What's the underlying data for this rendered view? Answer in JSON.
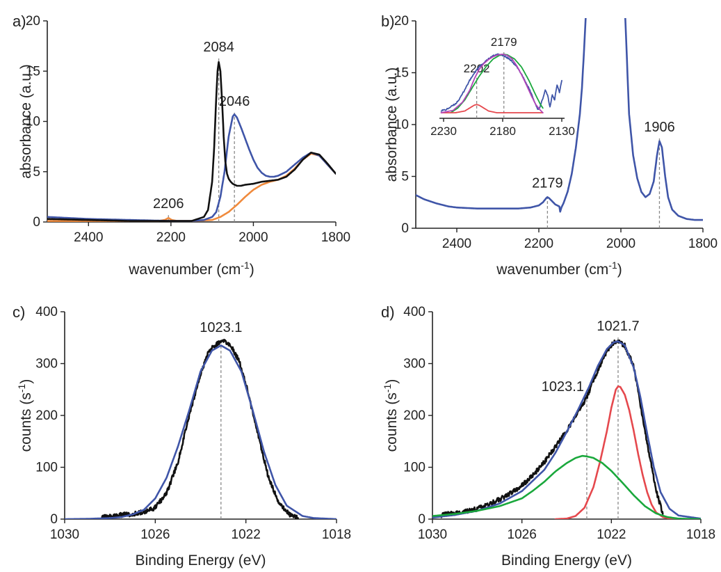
{
  "colors": {
    "black": "#111111",
    "blue": "#3f55a8",
    "orange": "#f08a3c",
    "red": "#e5484d",
    "green": "#1aa83c",
    "magenta": "#b245b8"
  },
  "chart_data": [
    {
      "panel": "a)",
      "type": "line",
      "xlabel": "wavenumber (cm",
      "xlabel_sup": "-1",
      "xlabel_end": ")",
      "ylabel": "absorbance (a.u.)",
      "xlim": [
        2500,
        1800
      ],
      "ylim": [
        0,
        20
      ],
      "xticks": [
        2400,
        2200,
        2000,
        1800
      ],
      "yticks": [
        0,
        5,
        10,
        15,
        20
      ],
      "peak_labels": [
        {
          "text": "2084",
          "x": 2084,
          "y": 16
        },
        {
          "text": "2046",
          "x": 2046,
          "y": 10.6
        },
        {
          "text": "2206",
          "x": 2206,
          "y": 0.4
        }
      ],
      "series": [
        {
          "color": "black",
          "x": [
            2500,
            2400,
            2300,
            2250,
            2200,
            2150,
            2120,
            2110,
            2100,
            2095,
            2090,
            2087,
            2084,
            2080,
            2076,
            2072,
            2068,
            2064,
            2060,
            2055,
            2050,
            2040,
            2030,
            2020,
            2000,
            1980,
            1960,
            1940,
            1920,
            1900,
            1880,
            1860,
            1840,
            1820,
            1800
          ],
          "y": [
            0.3,
            0.2,
            0.1,
            0.1,
            0.1,
            0.1,
            0.5,
            1.2,
            4.0,
            7.5,
            12.5,
            15.0,
            15.9,
            15.0,
            12.0,
            8.5,
            6.0,
            4.8,
            4.3,
            4.0,
            3.8,
            3.6,
            3.6,
            3.7,
            3.8,
            4.0,
            4.1,
            4.2,
            4.5,
            5.2,
            6.2,
            6.9,
            6.7,
            5.8,
            4.8
          ]
        },
        {
          "color": "blue",
          "x": [
            2500,
            2400,
            2300,
            2200,
            2150,
            2120,
            2100,
            2090,
            2080,
            2070,
            2060,
            2050,
            2046,
            2040,
            2030,
            2020,
            2010,
            2000,
            1990,
            1980,
            1970,
            1960,
            1950,
            1940,
            1920,
            1900,
            1880,
            1860,
            1840,
            1820,
            1800
          ],
          "y": [
            0.5,
            0.3,
            0.2,
            0.1,
            0.1,
            0.2,
            0.5,
            1.0,
            2.5,
            5.0,
            8.5,
            10.5,
            10.7,
            10.4,
            9.4,
            8.3,
            7.2,
            6.2,
            5.4,
            4.9,
            4.6,
            4.5,
            4.5,
            4.6,
            5.0,
            5.7,
            6.4,
            6.9,
            6.6,
            5.7,
            4.8
          ]
        },
        {
          "color": "orange",
          "x": [
            2500,
            2400,
            2300,
            2230,
            2215,
            2206,
            2198,
            2185,
            2150,
            2100,
            2080,
            2060,
            2040,
            2020,
            2000,
            1980,
            1960,
            1940,
            1920,
            1900,
            1880,
            1860,
            1840,
            1820,
            1800
          ],
          "y": [
            0.1,
            0.1,
            0.1,
            0.1,
            0.2,
            0.4,
            0.2,
            0.1,
            0.1,
            0.2,
            0.5,
            1.0,
            1.7,
            2.5,
            3.2,
            3.7,
            4.0,
            4.2,
            4.6,
            5.3,
            6.2,
            6.8,
            6.6,
            5.7,
            4.8
          ]
        }
      ]
    },
    {
      "panel": "b)",
      "type": "line",
      "xlabel": "wavenumber (cm",
      "xlabel_sup": "-1",
      "xlabel_end": ")",
      "ylabel": "absorbance (a.u.)",
      "xlim": [
        2500,
        1800
      ],
      "ylim": [
        0,
        20
      ],
      "xticks": [
        2400,
        2200,
        2000,
        1800
      ],
      "yticks": [
        0,
        5,
        10,
        15,
        20
      ],
      "peak_labels": [
        {
          "text": "2179",
          "x": 2179,
          "y": 3.0
        },
        {
          "text": "1906",
          "x": 1906,
          "y": 8.4
        }
      ],
      "series": [
        {
          "color": "blue",
          "x": [
            2500,
            2480,
            2450,
            2420,
            2400,
            2350,
            2300,
            2250,
            2220,
            2200,
            2190,
            2182,
            2179,
            2175,
            2170,
            2160,
            2150,
            2148,
            2145,
            2140,
            2130,
            2120,
            2110,
            2100,
            2095,
            2090,
            2086,
            2084,
            1990,
            1988,
            1984,
            1980,
            1970,
            1960,
            1950,
            1940,
            1930,
            1920,
            1912,
            1906,
            1900,
            1892,
            1885,
            1875,
            1860,
            1840,
            1820,
            1800
          ],
          "y": [
            3.2,
            2.8,
            2.4,
            2.1,
            2.0,
            1.9,
            1.9,
            1.9,
            2.0,
            2.2,
            2.5,
            2.9,
            3.0,
            2.9,
            2.7,
            2.3,
            2.1,
            1.6,
            2.0,
            2.4,
            3.5,
            5.2,
            7.7,
            11.0,
            13.5,
            17.0,
            20.2,
            21.0,
            21.0,
            19.0,
            15.0,
            11.0,
            7.0,
            4.8,
            3.5,
            3.0,
            3.3,
            4.5,
            7.0,
            8.4,
            7.8,
            5.0,
            3.0,
            1.8,
            1.2,
            0.9,
            0.8,
            0.8
          ]
        }
      ],
      "inset": {
        "xlim": [
          2230,
          2130
        ],
        "xticks": [
          2230,
          2180,
          2130
        ],
        "peak_labels": [
          {
            "text": "2202",
            "x": 2202
          },
          {
            "text": "2179",
            "x": 2179
          }
        ],
        "series": [
          {
            "color": "blue",
            "x": [
              2232,
              2228,
              2224,
              2220,
              2216,
              2212,
              2208,
              2204,
              2200,
              2196,
              2192,
              2188,
              2184,
              2180,
              2176,
              2172,
              2168,
              2164,
              2160,
              2156,
              2153,
              2150,
              2148,
              2146,
              2144,
              2142,
              2140,
              2138,
              2136,
              2134,
              2132,
              2130
            ],
            "y": [
              0.04,
              0.05,
              0.1,
              0.15,
              0.25,
              0.4,
              0.55,
              0.68,
              0.78,
              0.85,
              0.92,
              0.97,
              1.0,
              0.98,
              0.94,
              0.88,
              0.78,
              0.66,
              0.5,
              0.34,
              0.18,
              0.05,
              0.12,
              0.25,
              0.4,
              0.3,
              0.1,
              0.3,
              0.22,
              0.48,
              0.35,
              0.55
            ]
          },
          {
            "color": "green",
            "x": [
              2224,
              2218,
              2212,
              2206,
              2200,
              2194,
              2188,
              2182,
              2179,
              2176,
              2170,
              2164,
              2158,
              2152,
              2148,
              2146
            ],
            "y": [
              0.0,
              0.08,
              0.22,
              0.42,
              0.62,
              0.79,
              0.92,
              0.99,
              1.0,
              0.99,
              0.92,
              0.78,
              0.56,
              0.3,
              0.14,
              0.08
            ]
          },
          {
            "color": "red",
            "x": [
              2232,
              2220,
              2212,
              2208,
              2204,
              2202,
              2200,
              2196,
              2192,
              2185,
              2175,
              2160,
              2146
            ],
            "y": [
              0.0,
              0.0,
              0.03,
              0.08,
              0.13,
              0.14,
              0.13,
              0.08,
              0.03,
              0.0,
              0.0,
              0.0,
              0.0
            ]
          },
          {
            "color": "magenta",
            "x": [
              2232,
              2222,
              2214,
              2208,
              2204,
              2200,
              2196,
              2192,
              2188,
              2184,
              2180,
              2176,
              2172,
              2168,
              2164,
              2160,
              2156,
              2152,
              2148,
              2146
            ],
            "y": [
              0.0,
              0.04,
              0.18,
              0.38,
              0.58,
              0.74,
              0.84,
              0.91,
              0.96,
              0.99,
              1.0,
              0.98,
              0.92,
              0.8,
              0.65,
              0.48,
              0.3,
              0.14,
              0.04,
              0.0
            ]
          }
        ]
      }
    },
    {
      "panel": "c)",
      "type": "line",
      "xlabel": "Binding Energy (eV)",
      "ylabel": "counts (s",
      "ylabel_sup": "-1",
      "ylabel_end": ")",
      "xlim": [
        1030,
        1018
      ],
      "ylim": [
        0,
        400
      ],
      "xticks": [
        1030,
        1026,
        1022,
        1018
      ],
      "yticks": [
        0,
        100,
        200,
        300,
        400
      ],
      "peak_labels": [
        {
          "text": "1023.1",
          "x": 1023.1,
          "y": 342
        }
      ],
      "series": [
        {
          "color": "black",
          "noisy": true,
          "x": [
            1028.4,
            1028.0,
            1027.5,
            1027.0,
            1026.5,
            1026.0,
            1025.5,
            1025.0,
            1024.5,
            1024.0,
            1023.7,
            1023.4,
            1023.1,
            1022.9,
            1022.6,
            1022.3,
            1022.0,
            1021.5,
            1021.0,
            1020.5,
            1020.0,
            1019.7
          ],
          "y": [
            4,
            6,
            8,
            10,
            14,
            22,
            50,
            110,
            200,
            280,
            318,
            335,
            342,
            343,
            330,
            305,
            260,
            170,
            80,
            28,
            6,
            2
          ]
        },
        {
          "color": "blue",
          "x": [
            1030,
            1029,
            1028,
            1027.5,
            1027,
            1026.5,
            1026,
            1025.5,
            1025,
            1024.5,
            1024,
            1023.5,
            1023.1,
            1022.7,
            1022.2,
            1021.7,
            1021.2,
            1020.7,
            1020.2,
            1019.5,
            1019,
            1018
          ],
          "y": [
            0,
            0.5,
            2,
            4,
            9,
            18,
            40,
            80,
            140,
            210,
            285,
            325,
            335,
            325,
            285,
            210,
            130,
            66,
            26,
            6,
            2,
            0
          ]
        }
      ]
    },
    {
      "panel": "d)",
      "type": "line",
      "xlabel": "Binding Energy (eV)",
      "ylabel": "counts (s",
      "ylabel_sup": "-1",
      "ylabel_end": ")",
      "xlim": [
        1030,
        1018
      ],
      "ylim": [
        0,
        400
      ],
      "xticks": [
        1030,
        1026,
        1022,
        1018
      ],
      "yticks": [
        0,
        100,
        200,
        300,
        400
      ],
      "peak_labels": [
        {
          "text": "1021.7",
          "x": 1021.7,
          "y": 345
        },
        {
          "text": "1023.1",
          "x": 1023.1,
          "y": 228
        }
      ],
      "series": [
        {
          "color": "black",
          "noisy": true,
          "x": [
            1029.6,
            1029,
            1028.5,
            1028,
            1027.5,
            1027,
            1026.5,
            1026,
            1025.5,
            1025,
            1024.5,
            1024,
            1023.5,
            1023.1,
            1022.8,
            1022.5,
            1022.2,
            1021.9,
            1021.7,
            1021.4,
            1021.0,
            1020.5,
            1020.0,
            1019.7
          ],
          "y": [
            8,
            12,
            15,
            20,
            28,
            38,
            50,
            65,
            85,
            110,
            140,
            170,
            205,
            235,
            268,
            298,
            325,
            340,
            342,
            335,
            295,
            170,
            55,
            10
          ]
        },
        {
          "color": "blue",
          "x": [
            1030,
            1029,
            1028,
            1027,
            1026,
            1025,
            1024.5,
            1024,
            1023.5,
            1023,
            1022.6,
            1022.2,
            1021.9,
            1021.7,
            1021.4,
            1021.0,
            1020.7,
            1020.4,
            1020.1,
            1019.8,
            1019.4,
            1019,
            1018
          ],
          "y": [
            3,
            8,
            16,
            30,
            54,
            95,
            128,
            168,
            210,
            255,
            296,
            328,
            341,
            343,
            335,
            292,
            235,
            165,
            100,
            52,
            20,
            7,
            1
          ]
        },
        {
          "color": "red",
          "x": [
            1024.5,
            1024,
            1023.6,
            1023.2,
            1022.8,
            1022.5,
            1022.2,
            1022.0,
            1021.8,
            1021.7,
            1021.6,
            1021.4,
            1021.2,
            1021.0,
            1020.8,
            1020.6,
            1020.4,
            1020.2,
            1020.0,
            1019.7,
            1019.4,
            1019
          ],
          "y": [
            0,
            1,
            6,
            22,
            62,
            112,
            170,
            215,
            250,
            256,
            255,
            240,
            210,
            170,
            125,
            85,
            52,
            28,
            13,
            4,
            1,
            0
          ]
        },
        {
          "color": "green",
          "x": [
            1030,
            1029,
            1028,
            1027,
            1026,
            1025.5,
            1025,
            1024.5,
            1024,
            1023.6,
            1023.3,
            1023.1,
            1022.8,
            1022.4,
            1022,
            1021.5,
            1021,
            1020.5,
            1020,
            1019.5,
            1019,
            1018
          ],
          "y": [
            6,
            10,
            16,
            25,
            40,
            55,
            72,
            92,
            108,
            118,
            122,
            121,
            118,
            108,
            93,
            70,
            46,
            25,
            11,
            4,
            1,
            0
          ]
        }
      ]
    }
  ]
}
